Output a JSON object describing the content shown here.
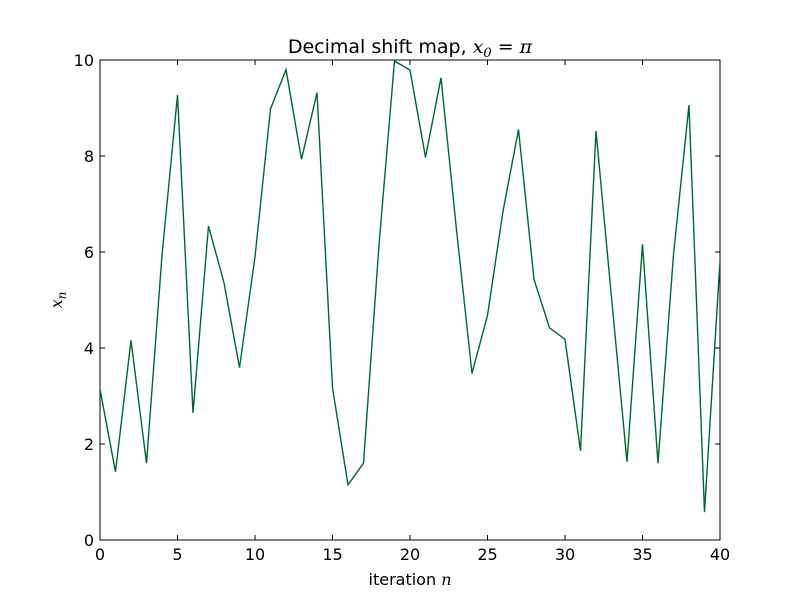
{
  "chart_data": {
    "type": "line",
    "title": "Decimal shift map, ",
    "title_math": "x",
    "title_math_sub": "0",
    "title_math_rest": " = π",
    "xlabel": "iteration ",
    "xlabel_math": "n",
    "ylabel_math": "x",
    "ylabel_math_sub": "n",
    "xlim": [
      0,
      40
    ],
    "ylim": [
      0,
      10
    ],
    "xticks": [
      0,
      5,
      10,
      15,
      20,
      25,
      30,
      35,
      40
    ],
    "yticks": [
      0,
      2,
      4,
      6,
      8,
      10
    ],
    "grid": false,
    "line_color": "#006633",
    "series": [
      {
        "x": [
          0,
          1,
          2,
          3,
          4,
          5,
          6,
          7,
          8,
          9,
          10,
          11,
          12,
          13,
          14,
          15,
          16,
          17,
          18,
          19,
          20,
          21,
          22,
          23,
          24,
          25,
          26,
          27,
          28,
          29,
          30,
          31,
          32,
          33,
          34,
          35,
          36,
          37,
          38,
          39,
          40
        ],
        "values": [
          3.14,
          1.42,
          4.16,
          1.6,
          5.93,
          9.27,
          2.65,
          6.54,
          5.36,
          3.59,
          5.9,
          8.98,
          9.8,
          7.93,
          9.32,
          3.17,
          1.15,
          1.6,
          6.15,
          9.98,
          9.79,
          7.97,
          9.63,
          6.46,
          3.47,
          4.68,
          6.85,
          8.55,
          5.43,
          4.42,
          4.18,
          1.86,
          8.52,
          5.05,
          1.63,
          6.16,
          1.6,
          5.95,
          9.06,
          0.58,
          5.8
        ]
      }
    ]
  }
}
